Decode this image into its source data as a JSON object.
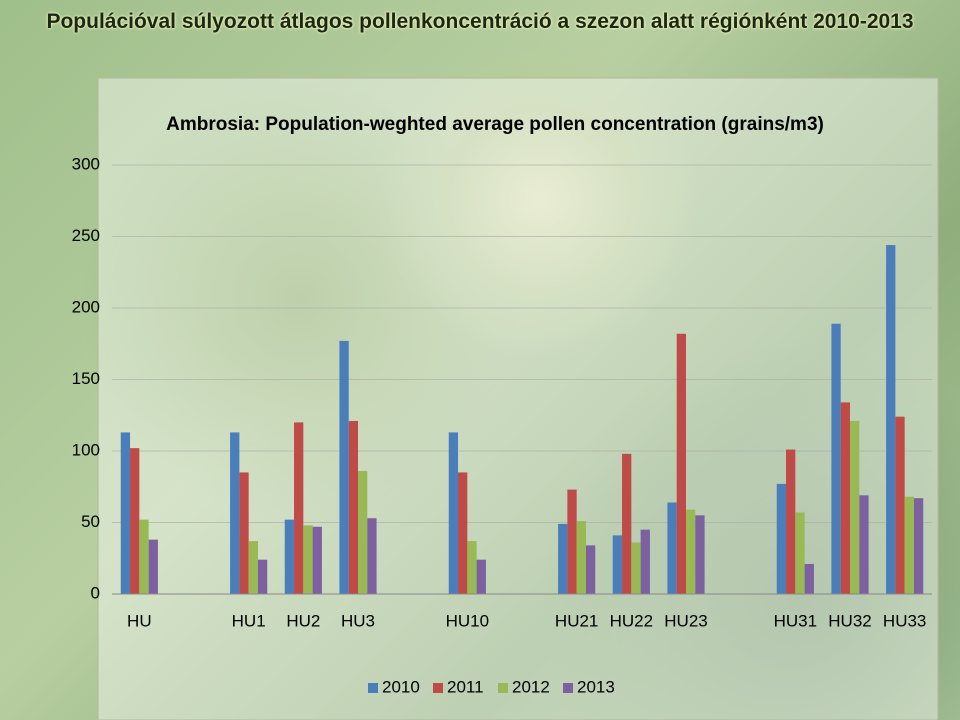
{
  "title": "Populációval súlyozott átlagos pollenkoncentráció a szezon alatt régiónként 2010-2013",
  "chart_data": {
    "type": "bar",
    "title": "Ambrosia:  Population-weghted average pollen concentration  (grains/m3)",
    "categories": [
      "HU",
      null,
      "HU1",
      "HU2",
      "HU3",
      null,
      "HU10",
      null,
      "HU21",
      "HU22",
      "HU23",
      null,
      "HU31",
      "HU32",
      "HU33"
    ],
    "series": [
      {
        "name": "2010",
        "color": "#4a7ebb",
        "values": [
          113,
          null,
          113,
          52,
          177,
          null,
          113,
          null,
          49,
          41,
          64,
          null,
          77,
          189,
          244
        ]
      },
      {
        "name": "2011",
        "color": "#be4b48",
        "values": [
          102,
          null,
          85,
          120,
          121,
          null,
          85,
          null,
          73,
          98,
          182,
          null,
          101,
          134,
          124
        ]
      },
      {
        "name": "2012",
        "color": "#98b954",
        "values": [
          52,
          null,
          37,
          48,
          86,
          null,
          37,
          null,
          51,
          36,
          59,
          null,
          57,
          121,
          68
        ]
      },
      {
        "name": "2013",
        "color": "#7d60a0",
        "values": [
          38,
          null,
          24,
          47,
          53,
          null,
          24,
          null,
          34,
          45,
          55,
          null,
          21,
          69,
          67
        ]
      }
    ],
    "ylim": [
      0,
      300
    ],
    "yticks": [
      0,
      50,
      100,
      150,
      200,
      250,
      300
    ],
    "grid": true,
    "legend": "bottom"
  }
}
